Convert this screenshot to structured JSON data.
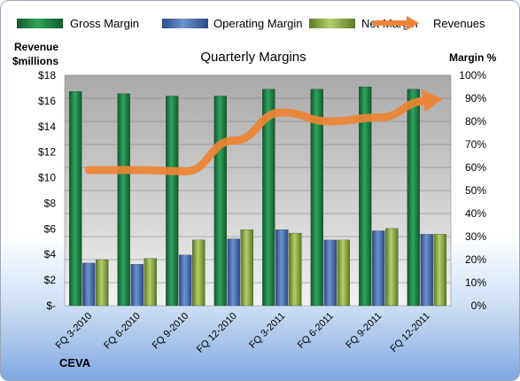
{
  "chart_data": {
    "type": "bar",
    "title": "Quarterly Margins",
    "left_axis_label": [
      "Revenue",
      "$millions"
    ],
    "right_axis_label": "Margin %",
    "footer_label": "CEVA",
    "categories": [
      "FQ 3-2010",
      "FQ 6-2010",
      "FQ 9-2010",
      "FQ 12-2010",
      "FQ 3-2011",
      "FQ 6-2011",
      "FQ 9-2011",
      "FQ 12-2011"
    ],
    "left_ticks": [
      "$-",
      "$2",
      "$4",
      "$6",
      "$8",
      "$10",
      "$12",
      "$14",
      "$16",
      "$18"
    ],
    "right_ticks": [
      "0%",
      "10%",
      "20%",
      "30%",
      "40%",
      "50%",
      "60%",
      "70%",
      "80%",
      "90%",
      "100%"
    ],
    "ylim_left": [
      0,
      18
    ],
    "ylim_right": [
      0,
      100
    ],
    "legend_position": "top",
    "grid": true,
    "series": [
      {
        "name": "Gross Margin",
        "axis": "right",
        "color": "#1e8a4a",
        "values": [
          93,
          92,
          91,
          91,
          94,
          94,
          95,
          94
        ]
      },
      {
        "name": "Operating Margin",
        "axis": "right",
        "color": "#4a6fb0",
        "values": [
          18.5,
          18,
          22,
          29,
          33,
          28.5,
          32.5,
          31
        ]
      },
      {
        "name": "Net Margin",
        "axis": "right",
        "color": "#8fae4a",
        "values": [
          20,
          20.5,
          28.5,
          33,
          31.5,
          28.5,
          33.5,
          31
        ]
      },
      {
        "name": "Revenues",
        "axis": "left",
        "type": "line",
        "color": "#ee8433",
        "values": [
          10.6,
          10.6,
          10.5,
          12.9,
          15.1,
          14.4,
          14.7,
          16.0
        ]
      }
    ]
  }
}
